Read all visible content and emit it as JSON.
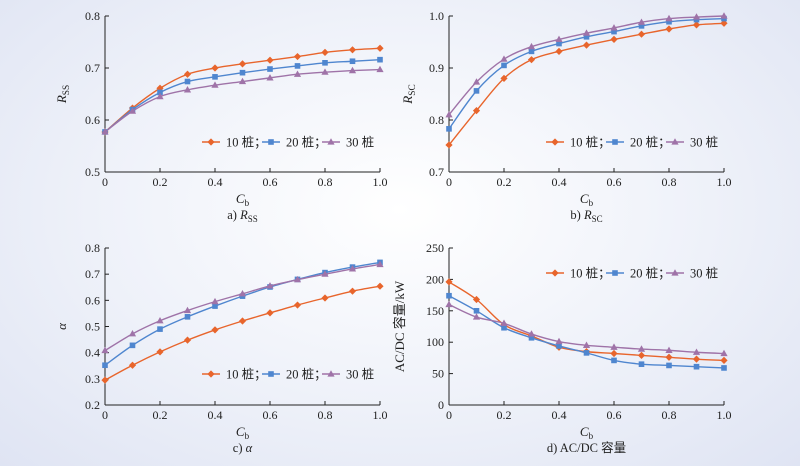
{
  "colors": {
    "s10": "#e8652c",
    "s20": "#4f86cf",
    "s30": "#9f73a8"
  },
  "chart_data": [
    {
      "type": "line",
      "caption": "a) R_SS",
      "xlabel": "C_b",
      "ylabel": "R_SS",
      "xlim": [
        0,
        1
      ],
      "ylim": [
        0.5,
        0.8
      ],
      "xticks": [
        "0",
        "0.2",
        "0.4",
        "0.6",
        "0.8",
        "1.0"
      ],
      "yticks": [
        "0.5",
        "0.6",
        "0.7",
        "0.8"
      ],
      "legend_position": "bottom-right",
      "x": [
        0,
        0.1,
        0.2,
        0.3,
        0.4,
        0.5,
        0.6,
        0.7,
        0.8,
        0.9,
        1.0
      ],
      "series": [
        {
          "name": "10 桩",
          "values": [
            0.577,
            0.623,
            0.661,
            0.688,
            0.7,
            0.708,
            0.715,
            0.722,
            0.73,
            0.735,
            0.738
          ]
        },
        {
          "name": "20 桩",
          "values": [
            0.577,
            0.62,
            0.653,
            0.674,
            0.683,
            0.691,
            0.698,
            0.704,
            0.71,
            0.713,
            0.716
          ]
        },
        {
          "name": "30 桩",
          "values": [
            0.577,
            0.617,
            0.645,
            0.658,
            0.667,
            0.674,
            0.681,
            0.688,
            0.692,
            0.695,
            0.697
          ]
        }
      ]
    },
    {
      "type": "line",
      "caption": "b) R_SC",
      "xlabel": "C_b",
      "ylabel": "R_SC",
      "xlim": [
        0,
        1
      ],
      "ylim": [
        0.7,
        1.0
      ],
      "xticks": [
        "0",
        "0.2",
        "0.4",
        "0.6",
        "0.8",
        "1.0"
      ],
      "yticks": [
        "0.7",
        "0.8",
        "0.9",
        "1.0"
      ],
      "legend_position": "bottom-right",
      "x": [
        0,
        0.1,
        0.2,
        0.3,
        0.4,
        0.5,
        0.6,
        0.7,
        0.8,
        0.9,
        1.0
      ],
      "series": [
        {
          "name": "10 桩",
          "values": [
            0.752,
            0.818,
            0.88,
            0.916,
            0.932,
            0.944,
            0.955,
            0.965,
            0.975,
            0.983,
            0.986
          ]
        },
        {
          "name": "20 桩",
          "values": [
            0.783,
            0.856,
            0.905,
            0.932,
            0.947,
            0.96,
            0.97,
            0.981,
            0.989,
            0.993,
            0.995
          ]
        },
        {
          "name": "30 桩",
          "values": [
            0.81,
            0.873,
            0.917,
            0.941,
            0.955,
            0.967,
            0.977,
            0.988,
            0.995,
            0.998,
            1.0
          ]
        }
      ]
    },
    {
      "type": "line",
      "caption": "c) α",
      "xlabel": "C_b",
      "ylabel": "α",
      "xlim": [
        0,
        1
      ],
      "ylim": [
        0.2,
        0.8
      ],
      "xticks": [
        "0",
        "0.2",
        "0.4",
        "0.6",
        "0.8",
        "1.0"
      ],
      "yticks": [
        "0.2",
        "0.3",
        "0.4",
        "0.5",
        "0.6",
        "0.7",
        "0.8"
      ],
      "legend_position": "bottom-right",
      "x": [
        0,
        0.1,
        0.2,
        0.3,
        0.4,
        0.5,
        0.6,
        0.7,
        0.8,
        0.9,
        1.0
      ],
      "series": [
        {
          "name": "10 桩",
          "values": [
            0.295,
            0.352,
            0.403,
            0.448,
            0.487,
            0.521,
            0.552,
            0.582,
            0.609,
            0.635,
            0.654
          ]
        },
        {
          "name": "20 桩",
          "values": [
            0.352,
            0.428,
            0.49,
            0.537,
            0.578,
            0.616,
            0.651,
            0.68,
            0.706,
            0.727,
            0.745
          ]
        },
        {
          "name": "30 桩",
          "values": [
            0.408,
            0.472,
            0.522,
            0.561,
            0.595,
            0.625,
            0.655,
            0.679,
            0.7,
            0.72,
            0.737
          ]
        }
      ]
    },
    {
      "type": "line",
      "caption": "d) AC/DC 容量",
      "xlabel": "C_b",
      "ylabel": "AC/DC 容量/kW",
      "xlim": [
        0,
        1
      ],
      "ylim": [
        0,
        250
      ],
      "xticks": [
        "0",
        "0.2",
        "0.4",
        "0.6",
        "0.8",
        "1.0"
      ],
      "yticks": [
        "0",
        "50",
        "100",
        "150",
        "200",
        "250"
      ],
      "legend_position": "top-right",
      "x": [
        0,
        0.1,
        0.2,
        0.3,
        0.4,
        0.5,
        0.6,
        0.7,
        0.8,
        0.9,
        1.0
      ],
      "series": [
        {
          "name": "10 桩",
          "values": [
            196,
            168,
            128,
            110,
            92,
            85,
            82,
            79,
            76,
            73,
            71
          ]
        },
        {
          "name": "20 桩",
          "values": [
            174,
            150,
            123,
            107,
            94,
            83,
            71,
            65,
            63,
            61,
            59
          ]
        },
        {
          "name": "30 桩",
          "values": [
            160,
            140,
            130,
            113,
            101,
            95,
            92,
            89,
            87,
            84,
            82
          ]
        }
      ]
    }
  ]
}
